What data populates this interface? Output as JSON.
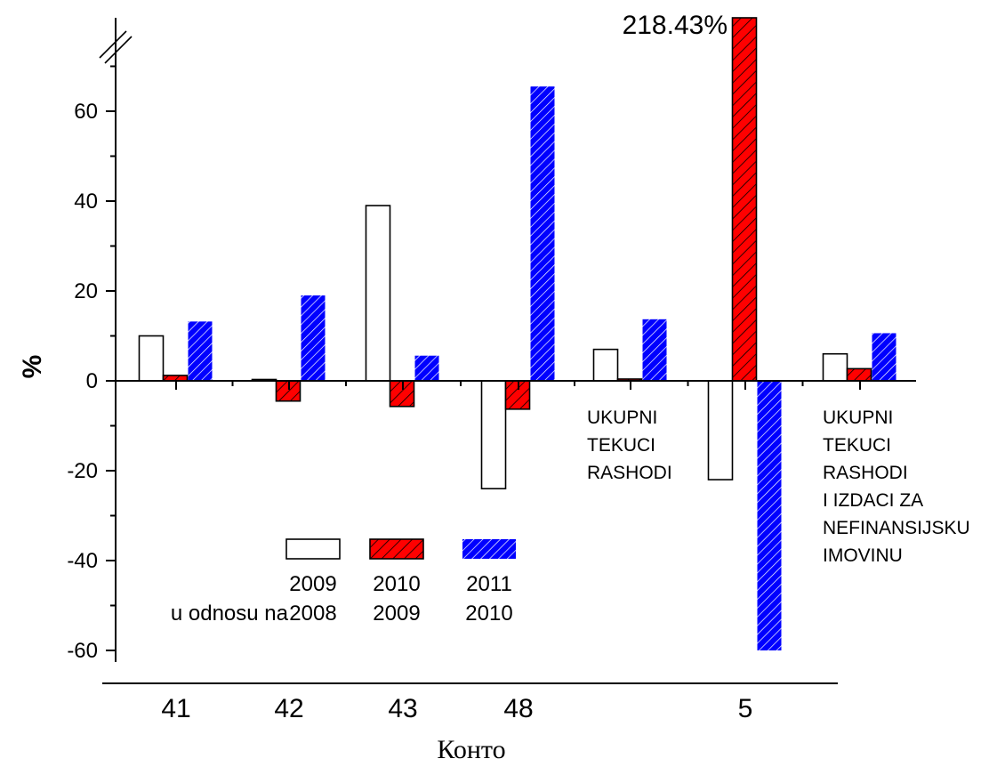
{
  "chart_data": {
    "type": "bar",
    "ylabel": "%",
    "xlabel": "Конто",
    "ylim": [
      -65,
      80
    ],
    "yticks": [
      -60,
      -40,
      -20,
      0,
      20,
      40,
      60
    ],
    "yticks_labels": [
      "-60",
      "-40",
      "-20",
      "0",
      "20",
      "40",
      "60"
    ],
    "categories": [
      "41",
      "42",
      "43",
      "48",
      "",
      "5",
      ""
    ],
    "category_notes": [
      "",
      "",
      "",
      "",
      "UKUPNI\nTEKUCI\nRASHODI",
      "",
      "UKUPNI\nTEKUCI\nRASHODI\nI IZDACI ZA\nNEFINANSIJSKU\nIMOVINU"
    ],
    "series": [
      {
        "name": "2009 / 2008",
        "values": [
          10,
          0.3,
          39,
          -24,
          7,
          -22,
          6
        ],
        "color": "#ffffff",
        "hatch": "none"
      },
      {
        "name": "2010 / 2009",
        "values": [
          1.2,
          -4.5,
          -5.7,
          -6.3,
          0.4,
          218.43,
          2.7
        ],
        "color": "#ff0000",
        "hatch": "black"
      },
      {
        "name": "2011 / 2010",
        "values": [
          13.2,
          19,
          5.6,
          65.5,
          13.7,
          -60,
          10.6
        ],
        "color": "#0000ff",
        "hatch": "white"
      }
    ],
    "axis_break": true,
    "annotations": [
      {
        "text": "218.43%"
      }
    ],
    "legend": {
      "placement": "bottom-center",
      "prefix": "u odnosu na",
      "years_top": [
        "2009",
        "2010",
        "2011"
      ],
      "years_bottom": [
        "2008",
        "2009",
        "2010"
      ]
    },
    "grid": false
  }
}
